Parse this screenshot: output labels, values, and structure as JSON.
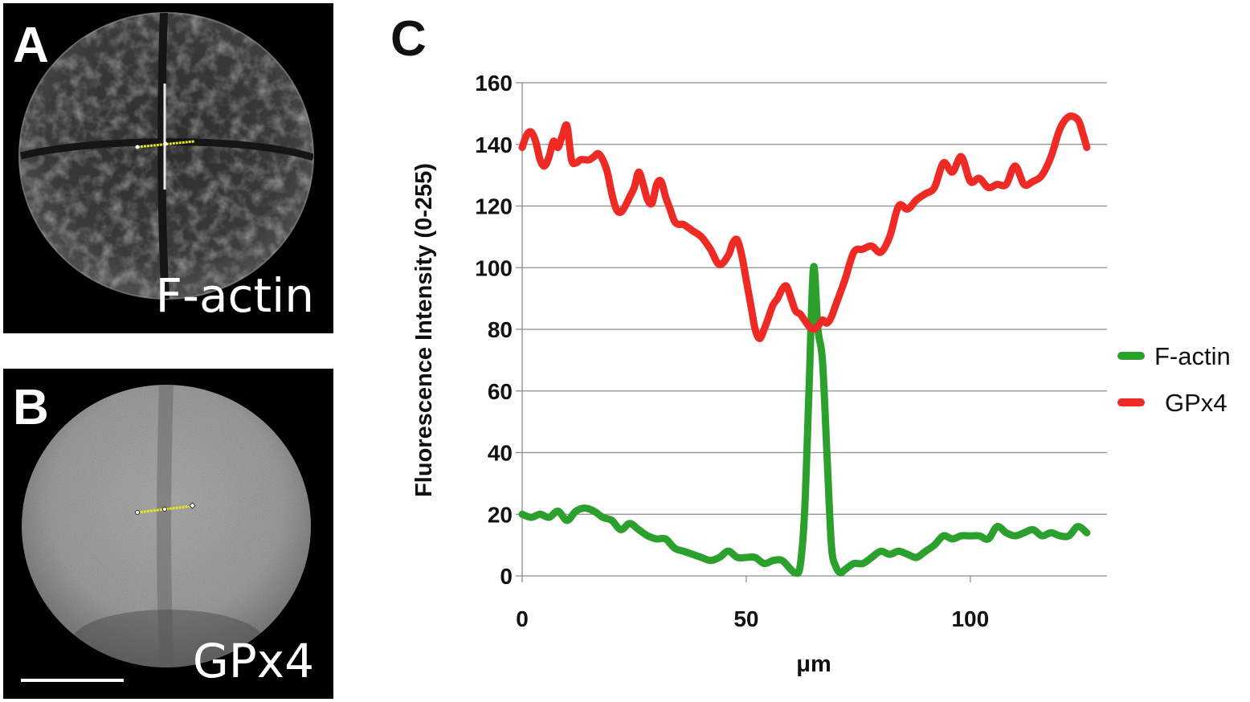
{
  "panels": {
    "a": {
      "letter": "A",
      "stain": "F-actin"
    },
    "b": {
      "letter": "B",
      "stain": "GPx4"
    },
    "c": {
      "letter": "C"
    }
  },
  "colors": {
    "f_actin": "#2ca02c",
    "gpx4": "#ee2a24",
    "measure_line": "#e6e619"
  },
  "chart_data": {
    "type": "line",
    "xlabel": "μm",
    "ylabel": "Fluorescence Intensity (0-255)",
    "xlim": [
      0,
      130
    ],
    "ylim": [
      0,
      160
    ],
    "xticks": [
      0,
      50,
      100
    ],
    "yticks": [
      0,
      20,
      40,
      60,
      80,
      100,
      120,
      140,
      160
    ],
    "grid": "horizontal",
    "legend_position": "right",
    "series": [
      {
        "name": "F-actin",
        "color": "#2ca02c",
        "x": [
          0,
          2,
          4,
          6,
          8,
          10,
          12,
          14,
          16,
          18,
          20,
          22,
          24,
          26,
          28,
          30,
          32,
          34,
          36,
          38,
          40,
          42,
          44,
          46,
          48,
          50,
          52,
          54,
          56,
          58,
          60,
          61,
          62,
          63,
          64,
          65,
          66,
          67,
          68,
          69,
          70,
          71,
          72,
          74,
          76,
          78,
          80,
          82,
          84,
          86,
          88,
          90,
          92,
          94,
          96,
          98,
          100,
          102,
          104,
          106,
          108,
          110,
          112,
          114,
          116,
          118,
          120,
          122,
          124,
          126
        ],
        "y": [
          20,
          19,
          20,
          19,
          21,
          18,
          21,
          22,
          21,
          19,
          18,
          15,
          17,
          15,
          13,
          12,
          12,
          9,
          8,
          7,
          6,
          5,
          6,
          8,
          6,
          6,
          6,
          4,
          5,
          5,
          2,
          1,
          3,
          20,
          60,
          100,
          80,
          70,
          40,
          10,
          3,
          1,
          2,
          4,
          4,
          6,
          8,
          7,
          8,
          7,
          6,
          8,
          10,
          13,
          12,
          13,
          13,
          13,
          12,
          16,
          14,
          13,
          14,
          15,
          13,
          14,
          13,
          13,
          16,
          14
        ]
      },
      {
        "name": "GPx4",
        "color": "#ee2a24",
        "x": [
          0,
          1,
          2,
          3,
          4,
          5,
          6,
          7,
          8,
          9,
          10,
          11,
          12,
          13,
          14,
          15,
          16,
          17,
          18,
          19,
          20,
          21,
          22,
          23,
          24,
          25,
          26,
          27,
          28,
          29,
          30,
          31,
          32,
          33,
          34,
          35,
          36,
          38,
          40,
          42,
          44,
          46,
          47,
          48,
          49,
          50,
          51,
          52,
          53,
          54,
          55,
          56,
          57,
          58,
          59,
          60,
          61,
          62,
          63,
          64,
          65,
          66,
          67,
          68,
          69,
          70,
          72,
          74,
          76,
          78,
          80,
          82,
          84,
          86,
          88,
          90,
          92,
          94,
          96,
          98,
          100,
          102,
          104,
          106,
          108,
          110,
          112,
          114,
          116,
          118,
          120,
          122,
          124,
          125,
          126
        ],
        "y": [
          139,
          143,
          144,
          141,
          135,
          133,
          136,
          141,
          139,
          143,
          146,
          135,
          134,
          135,
          135,
          135,
          136,
          137,
          135,
          131,
          124,
          119,
          118,
          120,
          123,
          126,
          131,
          127,
          122,
          121,
          127,
          128,
          123,
          119,
          115,
          114,
          114,
          112,
          110,
          106,
          101,
          104,
          108,
          109,
          104,
          96,
          88,
          80,
          77,
          80,
          84,
          88,
          90,
          93,
          94,
          90,
          86,
          85,
          83,
          81,
          80,
          81,
          83,
          82,
          84,
          88,
          96,
          105,
          106,
          107,
          105,
          110,
          120,
          119,
          122,
          124,
          126,
          134,
          131,
          136,
          128,
          129,
          126,
          127,
          127,
          133,
          127,
          128,
          130,
          136,
          145,
          149,
          148,
          144,
          139
        ]
      }
    ]
  }
}
